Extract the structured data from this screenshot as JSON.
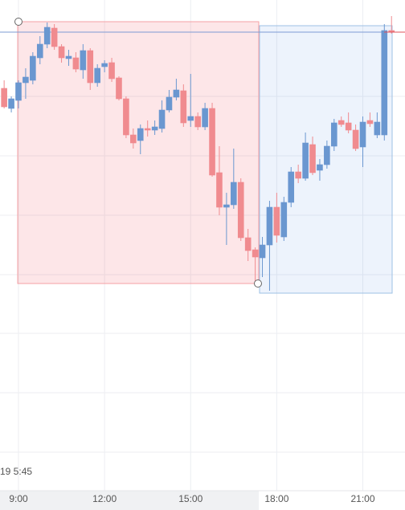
{
  "chart_data": {
    "type": "candlestick",
    "corner_label": "19 5:45",
    "x": [
      8.5,
      8.75,
      9,
      9.25,
      9.5,
      9.75,
      10,
      10.25,
      10.5,
      10.75,
      11,
      11.25,
      11.5,
      11.75,
      12,
      12.25,
      12.5,
      12.75,
      13,
      13.25,
      13.5,
      13.75,
      14,
      14.25,
      14.5,
      14.75,
      15,
      15.25,
      15.5,
      15.75,
      16,
      16.25,
      16.5,
      16.75,
      17,
      17.25,
      17.5,
      17.75,
      18,
      18.25,
      18.5,
      18.75,
      19,
      19.25,
      19.5,
      19.75,
      20,
      20.25,
      20.5,
      20.75,
      21,
      21.25,
      21.5,
      21.75,
      22
    ],
    "open": [
      59.0,
      56.5,
      57.5,
      59.7,
      60.0,
      62.8,
      64.5,
      66.5,
      64.2,
      62.7,
      62.8,
      61.3,
      63.7,
      59.7,
      61.7,
      62.2,
      60.3,
      57.7,
      53.2,
      52.5,
      54.0,
      53.8,
      54.0,
      56.3,
      57.9,
      58.7,
      55.0,
      55.5,
      54.2,
      56.5,
      48.5,
      44.2,
      44.5,
      47.3,
      40.4,
      38.9,
      37.9,
      39.5,
      44.2,
      40.5,
      44.8,
      48.6,
      47.8,
      52.0,
      48.8,
      49.5,
      51.8,
      55.0,
      54.7,
      53.8,
      51.7,
      55.0,
      53.2,
      53.2,
      66.2
    ],
    "high": [
      60.0,
      58.0,
      60.0,
      61.5,
      63.5,
      65.5,
      67.2,
      67.0,
      64.5,
      63.8,
      63.5,
      64.5,
      64.0,
      62.0,
      62.5,
      62.8,
      60.5,
      58.0,
      54.0,
      54.5,
      55.0,
      55.0,
      57.5,
      58.8,
      60.2,
      59.5,
      60.8,
      56.0,
      57.2,
      57.2,
      51.8,
      46.0,
      51.5,
      47.8,
      41.5,
      39.2,
      40.5,
      45.0,
      46.0,
      45.5,
      49.2,
      49.5,
      53.5,
      53.0,
      50.2,
      52.5,
      55.2,
      55.5,
      56.0,
      54.5,
      55.5,
      56.0,
      56.0,
      67.0,
      68.0
    ],
    "low": [
      56.5,
      56.0,
      56.5,
      57.7,
      59.5,
      62.0,
      64.0,
      63.8,
      62.2,
      61.8,
      61.0,
      60.2,
      58.8,
      59.2,
      61.0,
      59.8,
      57.5,
      52.8,
      51.5,
      50.8,
      53.0,
      53.2,
      53.5,
      56.0,
      57.5,
      54.2,
      54.2,
      53.8,
      53.8,
      48.0,
      43.2,
      39.5,
      44.0,
      40.0,
      37.5,
      34.8,
      35.5,
      33.8,
      39.8,
      40.0,
      44.2,
      47.2,
      47.5,
      48.2,
      47.5,
      49.0,
      51.2,
      54.2,
      53.4,
      51.2,
      49.2,
      54.2,
      52.8,
      52.5,
      65.8
    ],
    "close": [
      56.7,
      57.7,
      59.7,
      60.4,
      63.0,
      64.5,
      66.6,
      64.2,
      62.8,
      63.0,
      61.4,
      63.7,
      59.7,
      61.5,
      62.1,
      60.2,
      57.7,
      53.2,
      52.2,
      54.0,
      53.8,
      54.2,
      56.3,
      57.9,
      58.8,
      54.7,
      55.5,
      54.2,
      56.5,
      48.2,
      44.2,
      44.5,
      47.3,
      40.4,
      38.8,
      38.0,
      39.5,
      44.2,
      40.7,
      44.8,
      48.6,
      47.8,
      52.2,
      48.5,
      49.5,
      51.8,
      54.7,
      54.5,
      53.8,
      51.5,
      54.8,
      54.6,
      54.8,
      66.2,
      66.0
    ],
    "up_color": "#6a97d0",
    "down_color": "#f08b8f",
    "xlim": [
      8.356,
      22.47
    ],
    "ylim": [
      9,
      70
    ],
    "xticks": [
      {
        "value": 9,
        "label": "9:00"
      },
      {
        "value": 12,
        "label": "12:00"
      },
      {
        "value": 15,
        "label": "15:00"
      },
      {
        "value": 18,
        "label": "18:00"
      },
      {
        "value": 21,
        "label": "21:00"
      }
    ],
    "grid": true
  }
}
